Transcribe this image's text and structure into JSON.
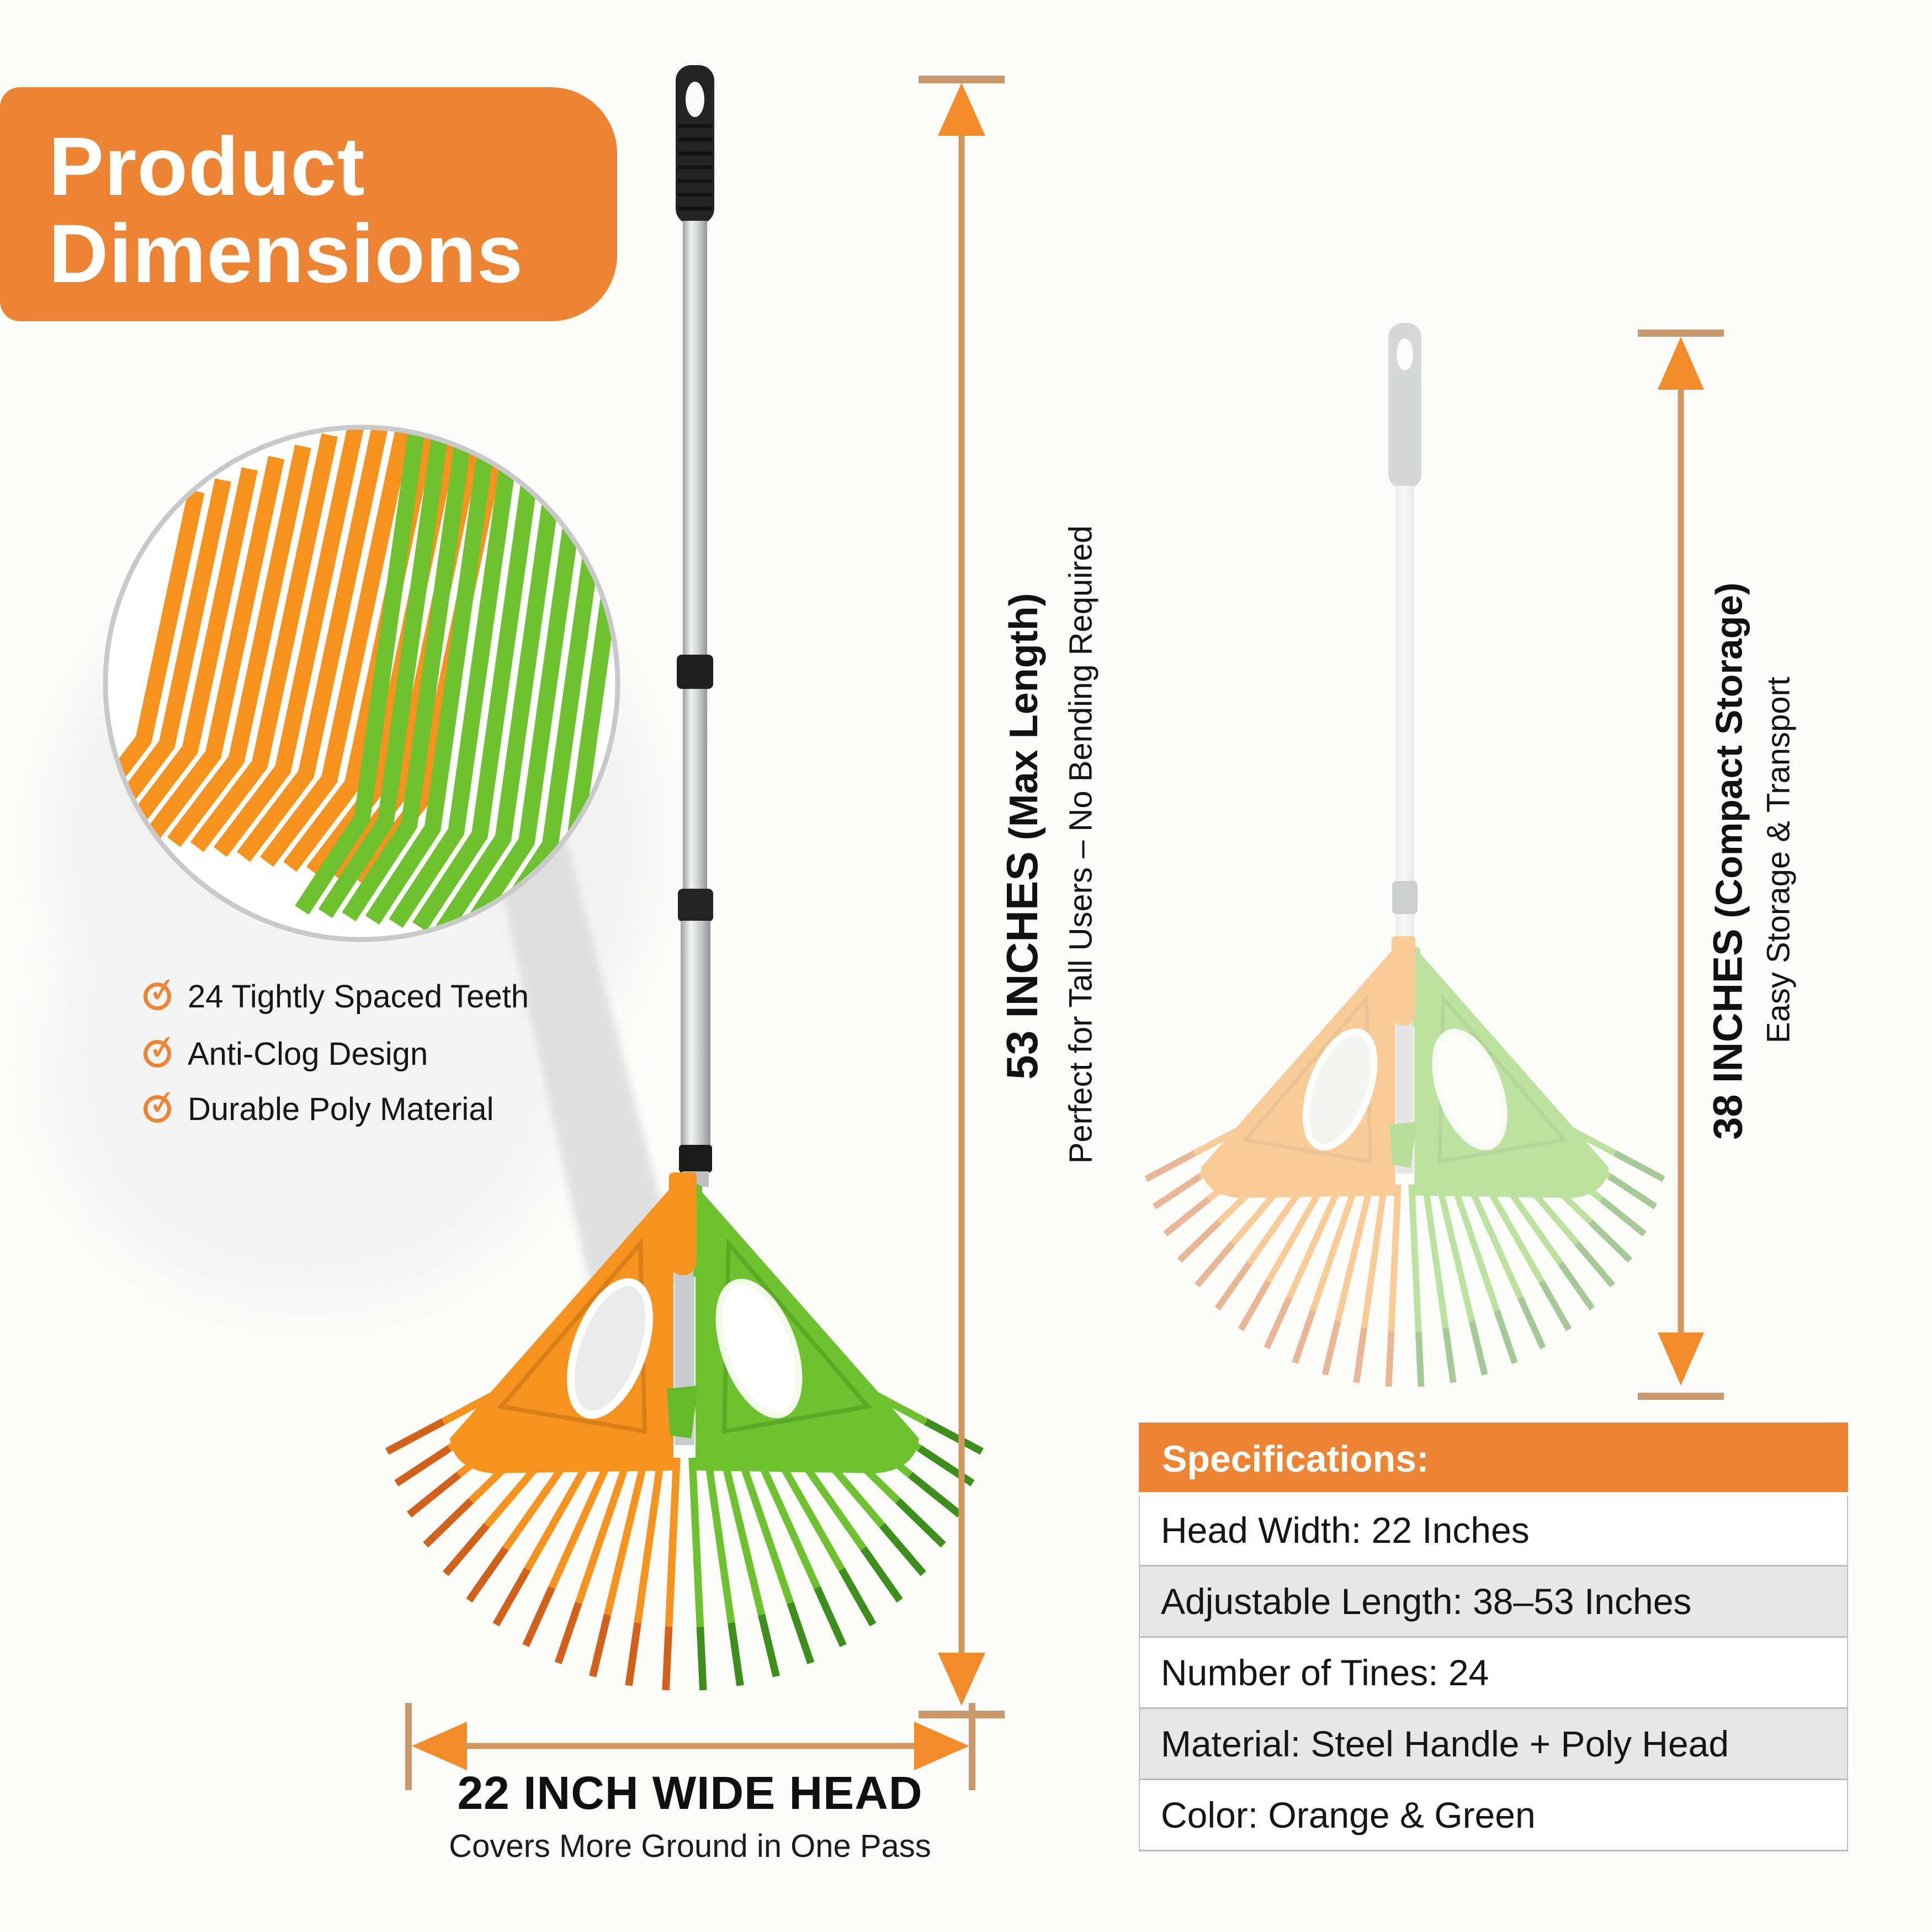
{
  "title": {
    "line1": "Product",
    "line2": "Dimensions"
  },
  "icons": {
    "check": "✓"
  },
  "features": [
    {
      "label": "24 Tightly Spaced Teeth"
    },
    {
      "label": "Anti-Clog Design"
    },
    {
      "label": "Durable Poly Material"
    }
  ],
  "dim_max": {
    "primary": "53 INCHES",
    "qualifier": " (Max Length)",
    "secondary": "Perfect for Tall Users – No Bending Required"
  },
  "dim_compact": {
    "primary": "38 INCHES",
    "qualifier": " (Compact Storage)",
    "secondary": "Easy Storage & Transport"
  },
  "head_width": {
    "title": "22 INCH WIDE HEAD",
    "subtitle": "Covers More Ground in One Pass"
  },
  "specs": {
    "header": "Specifications:",
    "rows": [
      "Head Width: 22 Inches",
      "Adjustable Length: 38–53 Inches",
      "Number of Tines: 24",
      "Material: Steel Handle + Poly Head",
      "Color: Orange & Green"
    ]
  },
  "colors": {
    "accent_orange": "#EC8433",
    "arrow_orange": "#F28C2A",
    "arrow_shaft": "#D2975F",
    "arrow_cap": "#C9996B",
    "rake_orange": "#F6921E",
    "rake_orange_tip": "#D2611C",
    "rake_green": "#6FC22F",
    "rake_green_tip": "#3E8E1E",
    "text_dark": "#1A1A1A",
    "row_alt": "#E7E7E7",
    "table_border": "#C2C2C2"
  }
}
